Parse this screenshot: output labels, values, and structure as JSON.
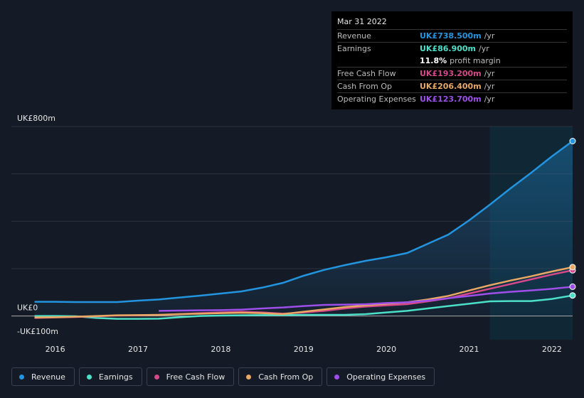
{
  "chart_data": {
    "type": "line",
    "x": [
      2015.75,
      2016,
      2016.25,
      2016.5,
      2016.75,
      2017,
      2017.25,
      2017.5,
      2017.75,
      2018,
      2018.25,
      2018.5,
      2018.75,
      2019,
      2019.25,
      2019.5,
      2019.75,
      2020,
      2020.25,
      2020.5,
      2020.75,
      2021,
      2021.25,
      2021.5,
      2021.75,
      2022,
      2022.25
    ],
    "series": [
      {
        "name": "Revenue",
        "color": "#2394df",
        "values": [
          60,
          60,
          59,
          59,
          59,
          65,
          70,
          78,
          86,
          95,
          104,
          120,
          140,
          170,
          195,
          215,
          233,
          248,
          266,
          305,
          344,
          404,
          470,
          539,
          605,
          674,
          738.5
        ]
      },
      {
        "name": "Earnings",
        "color": "#4de0c9",
        "values": [
          0,
          0,
          -1,
          -8,
          -12,
          -12,
          -11,
          -5,
          0,
          2,
          3,
          4,
          4,
          5,
          5,
          5,
          8,
          15,
          22,
          32,
          42,
          52,
          62,
          63,
          63,
          72,
          86.9
        ]
      },
      {
        "name": "Free Cash Flow",
        "color": "#d5498a",
        "values": [
          -8,
          -6,
          -4,
          -1,
          2,
          3,
          5,
          8,
          12,
          15,
          18,
          15,
          10,
          15,
          22,
          32,
          40,
          45,
          50,
          62,
          75,
          95,
          115,
          135,
          155,
          175,
          193.2
        ]
      },
      {
        "name": "Cash From Op",
        "color": "#e9a864",
        "values": [
          -6,
          -5,
          -3,
          0,
          3,
          4,
          5,
          8,
          10,
          12,
          14,
          12,
          8,
          18,
          28,
          38,
          45,
          52,
          58,
          70,
          85,
          108,
          130,
          150,
          168,
          188,
          206.4
        ]
      },
      {
        "name": "Operating Expenses",
        "color": "#9e4fe9",
        "values": [
          null,
          null,
          null,
          null,
          null,
          null,
          22,
          23,
          24,
          25,
          27,
          32,
          36,
          42,
          47,
          48,
          50,
          55,
          58,
          65,
          75,
          85,
          95,
          102,
          108,
          115,
          123.7
        ]
      }
    ],
    "xlim": [
      2015.47,
      2022.25
    ],
    "xticks": [
      2016,
      2017,
      2018,
      2019,
      2020,
      2021,
      2022
    ],
    "ylim": [
      -100,
      800
    ],
    "yticks": [
      {
        "value": 800,
        "label": "UK£800m"
      },
      {
        "value": 0,
        "label": "UK£0"
      },
      {
        "value": -100,
        "label": "-UK£100m"
      }
    ],
    "ygrid": [
      0,
      200,
      400,
      600,
      800
    ],
    "grid": true,
    "tooltip": {
      "date": "Mar 31 2022",
      "rows": [
        {
          "label": "Revenue",
          "value": "UK£738.500m",
          "unit": "/yr"
        },
        {
          "label": "Earnings",
          "value": "UK£86.900m",
          "unit": "/yr"
        },
        {
          "label": "",
          "value": "11.8%",
          "unit": "profit margin"
        },
        {
          "label": "Free Cash Flow",
          "value": "UK£193.200m",
          "unit": "/yr"
        },
        {
          "label": "Cash From Op",
          "value": "UK£206.400m",
          "unit": "/yr"
        },
        {
          "label": "Operating Expenses",
          "value": "UK£123.700m",
          "unit": "/yr"
        }
      ]
    }
  }
}
